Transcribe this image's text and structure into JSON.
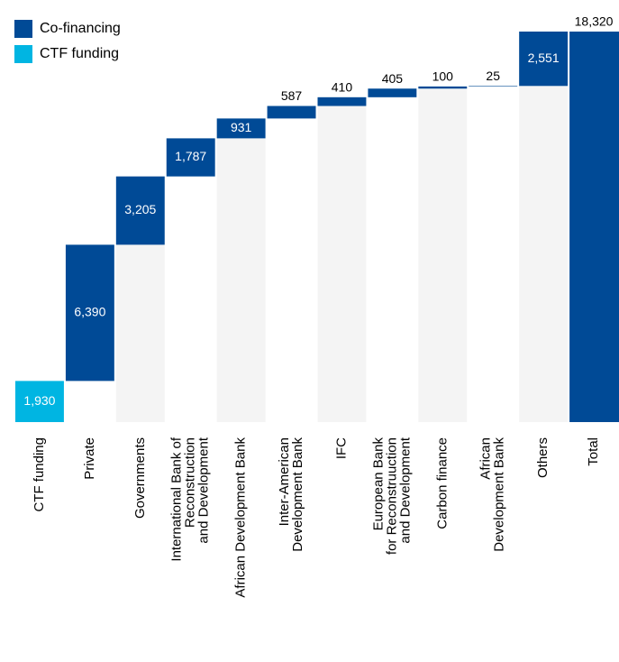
{
  "chart_data": {
    "type": "waterfall",
    "categories": [
      "CTF funding",
      "Private",
      "Governments",
      "International Bank of\nReconstruction\nand Development",
      "African Development Bank",
      "Inter-American\nDevelopment Bank",
      "IFC",
      "European Bank\nfor Reconstruuction\nand Development",
      "Carbon finance",
      "African\nDevelopment Bank",
      "Others",
      "Total"
    ],
    "values": [
      1930,
      6390,
      3205,
      1787,
      931,
      587,
      410,
      405,
      100,
      25,
      2551,
      18320
    ],
    "value_labels": [
      "1,930",
      "6,390",
      "3,205",
      "1,787",
      "931",
      "587",
      "410",
      "405",
      "100",
      "25",
      "2,551",
      "18,320"
    ],
    "colors": [
      "#00b5e2",
      "#004a96",
      "#004a96",
      "#004a96",
      "#004a96",
      "#004a96",
      "#004a96",
      "#004a96",
      "#004a96",
      "#004a96",
      "#004a96",
      "#004a96"
    ],
    "legend": [
      {
        "name": "Co-financing",
        "color": "#004a96"
      },
      {
        "name": "CTF funding",
        "color": "#00b5e2"
      }
    ]
  }
}
